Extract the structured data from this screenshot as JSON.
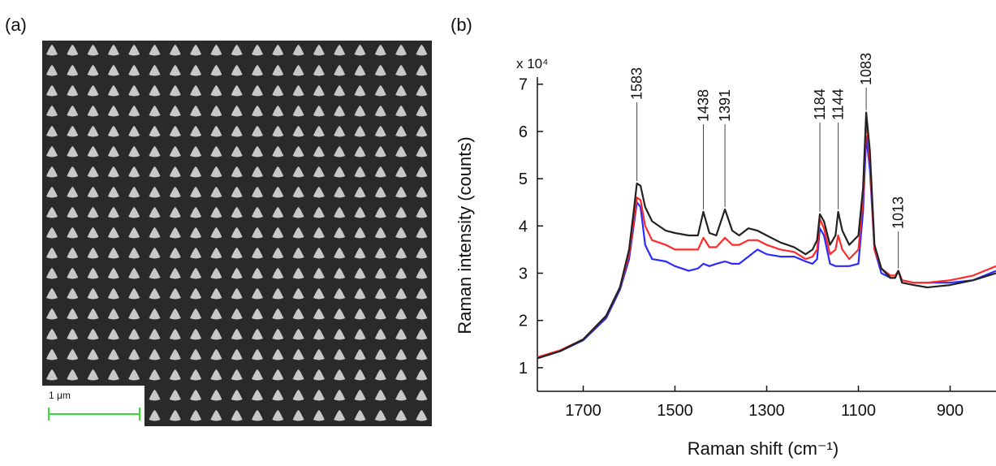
{
  "panel_labels": [
    "(a)",
    "(b)"
  ],
  "scale_bar": "1 μm",
  "chart_data": {
    "type": "line",
    "multiplier": "x 10⁴",
    "xlabel": "Raman shift (cm⁻¹)",
    "ylabel": "Raman intensity (counts)",
    "xlim": [
      1800,
      800
    ],
    "ylim": [
      0.5,
      7.15
    ],
    "xticks": [
      1700,
      1500,
      1300,
      1100,
      900
    ],
    "yticks": [
      1,
      2,
      3,
      4,
      5,
      6,
      7
    ],
    "peaks": [
      1583,
      1438,
      1391,
      1184,
      1144,
      1083,
      1013
    ],
    "x": [
      1800,
      1750,
      1700,
      1650,
      1620,
      1600,
      1590,
      1583,
      1575,
      1565,
      1550,
      1520,
      1500,
      1470,
      1450,
      1438,
      1425,
      1410,
      1391,
      1375,
      1360,
      1340,
      1320,
      1300,
      1270,
      1240,
      1215,
      1200,
      1190,
      1184,
      1175,
      1162,
      1150,
      1144,
      1135,
      1120,
      1100,
      1090,
      1083,
      1075,
      1065,
      1050,
      1030,
      1020,
      1013,
      1005,
      980,
      950,
      900,
      850,
      800
    ],
    "series": [
      {
        "color": "#2b2bff",
        "values": [
          1.2,
          1.35,
          1.58,
          2.05,
          2.65,
          3.3,
          4.0,
          4.5,
          4.4,
          3.6,
          3.3,
          3.25,
          3.15,
          3.05,
          3.1,
          3.2,
          3.15,
          3.2,
          3.25,
          3.2,
          3.2,
          3.35,
          3.5,
          3.4,
          3.35,
          3.35,
          3.25,
          3.2,
          3.3,
          3.95,
          3.8,
          3.2,
          3.15,
          3.15,
          3.15,
          3.15,
          3.2,
          4.3,
          5.9,
          5.2,
          3.5,
          3.0,
          2.9,
          2.9,
          3.05,
          2.85,
          2.8,
          2.8,
          2.8,
          2.85,
          3.05
        ]
      },
      {
        "color": "#ff2b2b",
        "values": [
          1.22,
          1.37,
          1.6,
          2.1,
          2.7,
          3.4,
          4.1,
          4.6,
          4.55,
          4.0,
          3.7,
          3.6,
          3.5,
          3.5,
          3.5,
          3.75,
          3.55,
          3.55,
          3.75,
          3.6,
          3.6,
          3.7,
          3.7,
          3.6,
          3.5,
          3.45,
          3.3,
          3.35,
          3.5,
          4.15,
          3.95,
          3.4,
          3.5,
          3.8,
          3.5,
          3.3,
          3.5,
          4.6,
          6.3,
          5.4,
          3.5,
          3.1,
          2.95,
          2.95,
          3.05,
          2.85,
          2.8,
          2.8,
          2.85,
          2.95,
          3.15
        ]
      },
      {
        "color": "#222222",
        "values": [
          1.2,
          1.35,
          1.6,
          2.1,
          2.7,
          3.5,
          4.3,
          4.9,
          4.85,
          4.4,
          4.1,
          3.9,
          3.85,
          3.8,
          3.8,
          4.3,
          3.85,
          3.8,
          4.35,
          3.9,
          3.8,
          3.95,
          3.9,
          3.8,
          3.65,
          3.55,
          3.4,
          3.5,
          3.7,
          4.25,
          4.1,
          3.6,
          3.8,
          4.3,
          3.9,
          3.6,
          3.8,
          4.8,
          6.4,
          5.6,
          3.6,
          3.1,
          2.9,
          2.9,
          3.05,
          2.8,
          2.75,
          2.7,
          2.75,
          2.85,
          3.0
        ]
      }
    ]
  }
}
